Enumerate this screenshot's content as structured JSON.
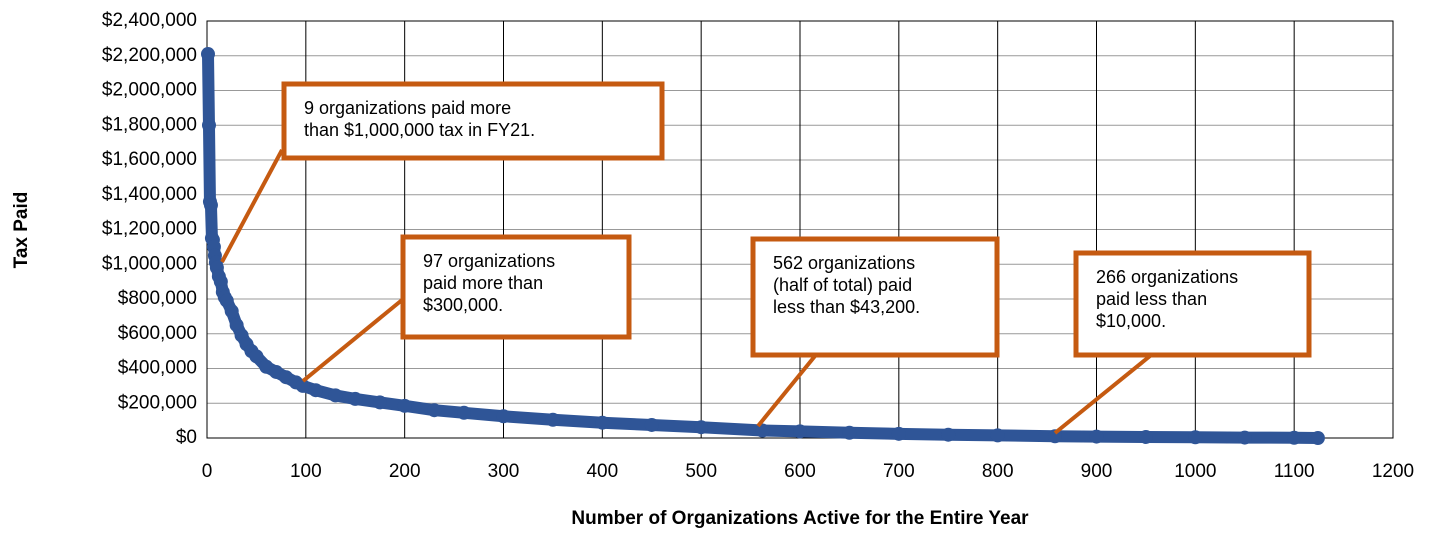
{
  "chart_data": {
    "type": "scatter",
    "x_label": "Number of Organizations Active for the Entire Year",
    "y_label": "Tax Paid",
    "xlim": [
      0,
      1200
    ],
    "xticks": [
      0,
      100,
      200,
      300,
      400,
      500,
      600,
      700,
      800,
      900,
      1000,
      1100,
      1200
    ],
    "ylim": [
      0,
      2400000
    ],
    "yticks": [
      {
        "value": 0,
        "label": "$0"
      },
      {
        "value": 200000,
        "label": "$200,000"
      },
      {
        "value": 400000,
        "label": "$400,000"
      },
      {
        "value": 600000,
        "label": "$600,000"
      },
      {
        "value": 800000,
        "label": "$800,000"
      },
      {
        "value": 1000000,
        "label": "$1,000,000"
      },
      {
        "value": 1200000,
        "label": "$1,200,000"
      },
      {
        "value": 1400000,
        "label": "$1,400,000"
      },
      {
        "value": 1600000,
        "label": "$1,600,000"
      },
      {
        "value": 1800000,
        "label": "$1,800,000"
      },
      {
        "value": 2000000,
        "label": "$2,000,000"
      },
      {
        "value": 2200000,
        "label": "$2,200,000"
      },
      {
        "value": 2400000,
        "label": "$2,400,000"
      }
    ],
    "grid": true,
    "color": "#2f5597",
    "x": [
      1,
      2,
      3,
      4,
      5,
      6,
      7,
      8,
      9,
      10,
      12,
      14,
      16,
      18,
      20,
      25,
      30,
      35,
      40,
      45,
      50,
      60,
      70,
      80,
      90,
      97,
      110,
      130,
      150,
      175,
      200,
      230,
      260,
      300,
      350,
      400,
      450,
      500,
      562,
      600,
      650,
      700,
      750,
      800,
      858,
      900,
      950,
      1000,
      1050,
      1100,
      1124
    ],
    "values": [
      2210000,
      1800000,
      1360000,
      1340000,
      1150000,
      1140000,
      1100000,
      1050000,
      1010000,
      980000,
      930000,
      900000,
      840000,
      810000,
      790000,
      730000,
      650000,
      590000,
      540000,
      500000,
      470000,
      410000,
      380000,
      350000,
      320000,
      300000,
      275000,
      245000,
      225000,
      205000,
      185000,
      160000,
      145000,
      125000,
      105000,
      88000,
      75000,
      62000,
      43200,
      38000,
      30000,
      24000,
      19000,
      15000,
      10000,
      8000,
      6000,
      4000,
      2500,
      1200,
      0
    ],
    "annotations": [
      {
        "lines": [
          "9 organizations paid more",
          "than $1,000,000 tax in FY21."
        ]
      },
      {
        "lines": [
          "97 organizations",
          "paid more than",
          "$300,000."
        ]
      },
      {
        "lines": [
          "562 organizations",
          "(half of total) paid",
          "less than $43,200."
        ]
      },
      {
        "lines": [
          "266 organizations",
          "paid less than",
          "$10,000."
        ]
      }
    ]
  }
}
